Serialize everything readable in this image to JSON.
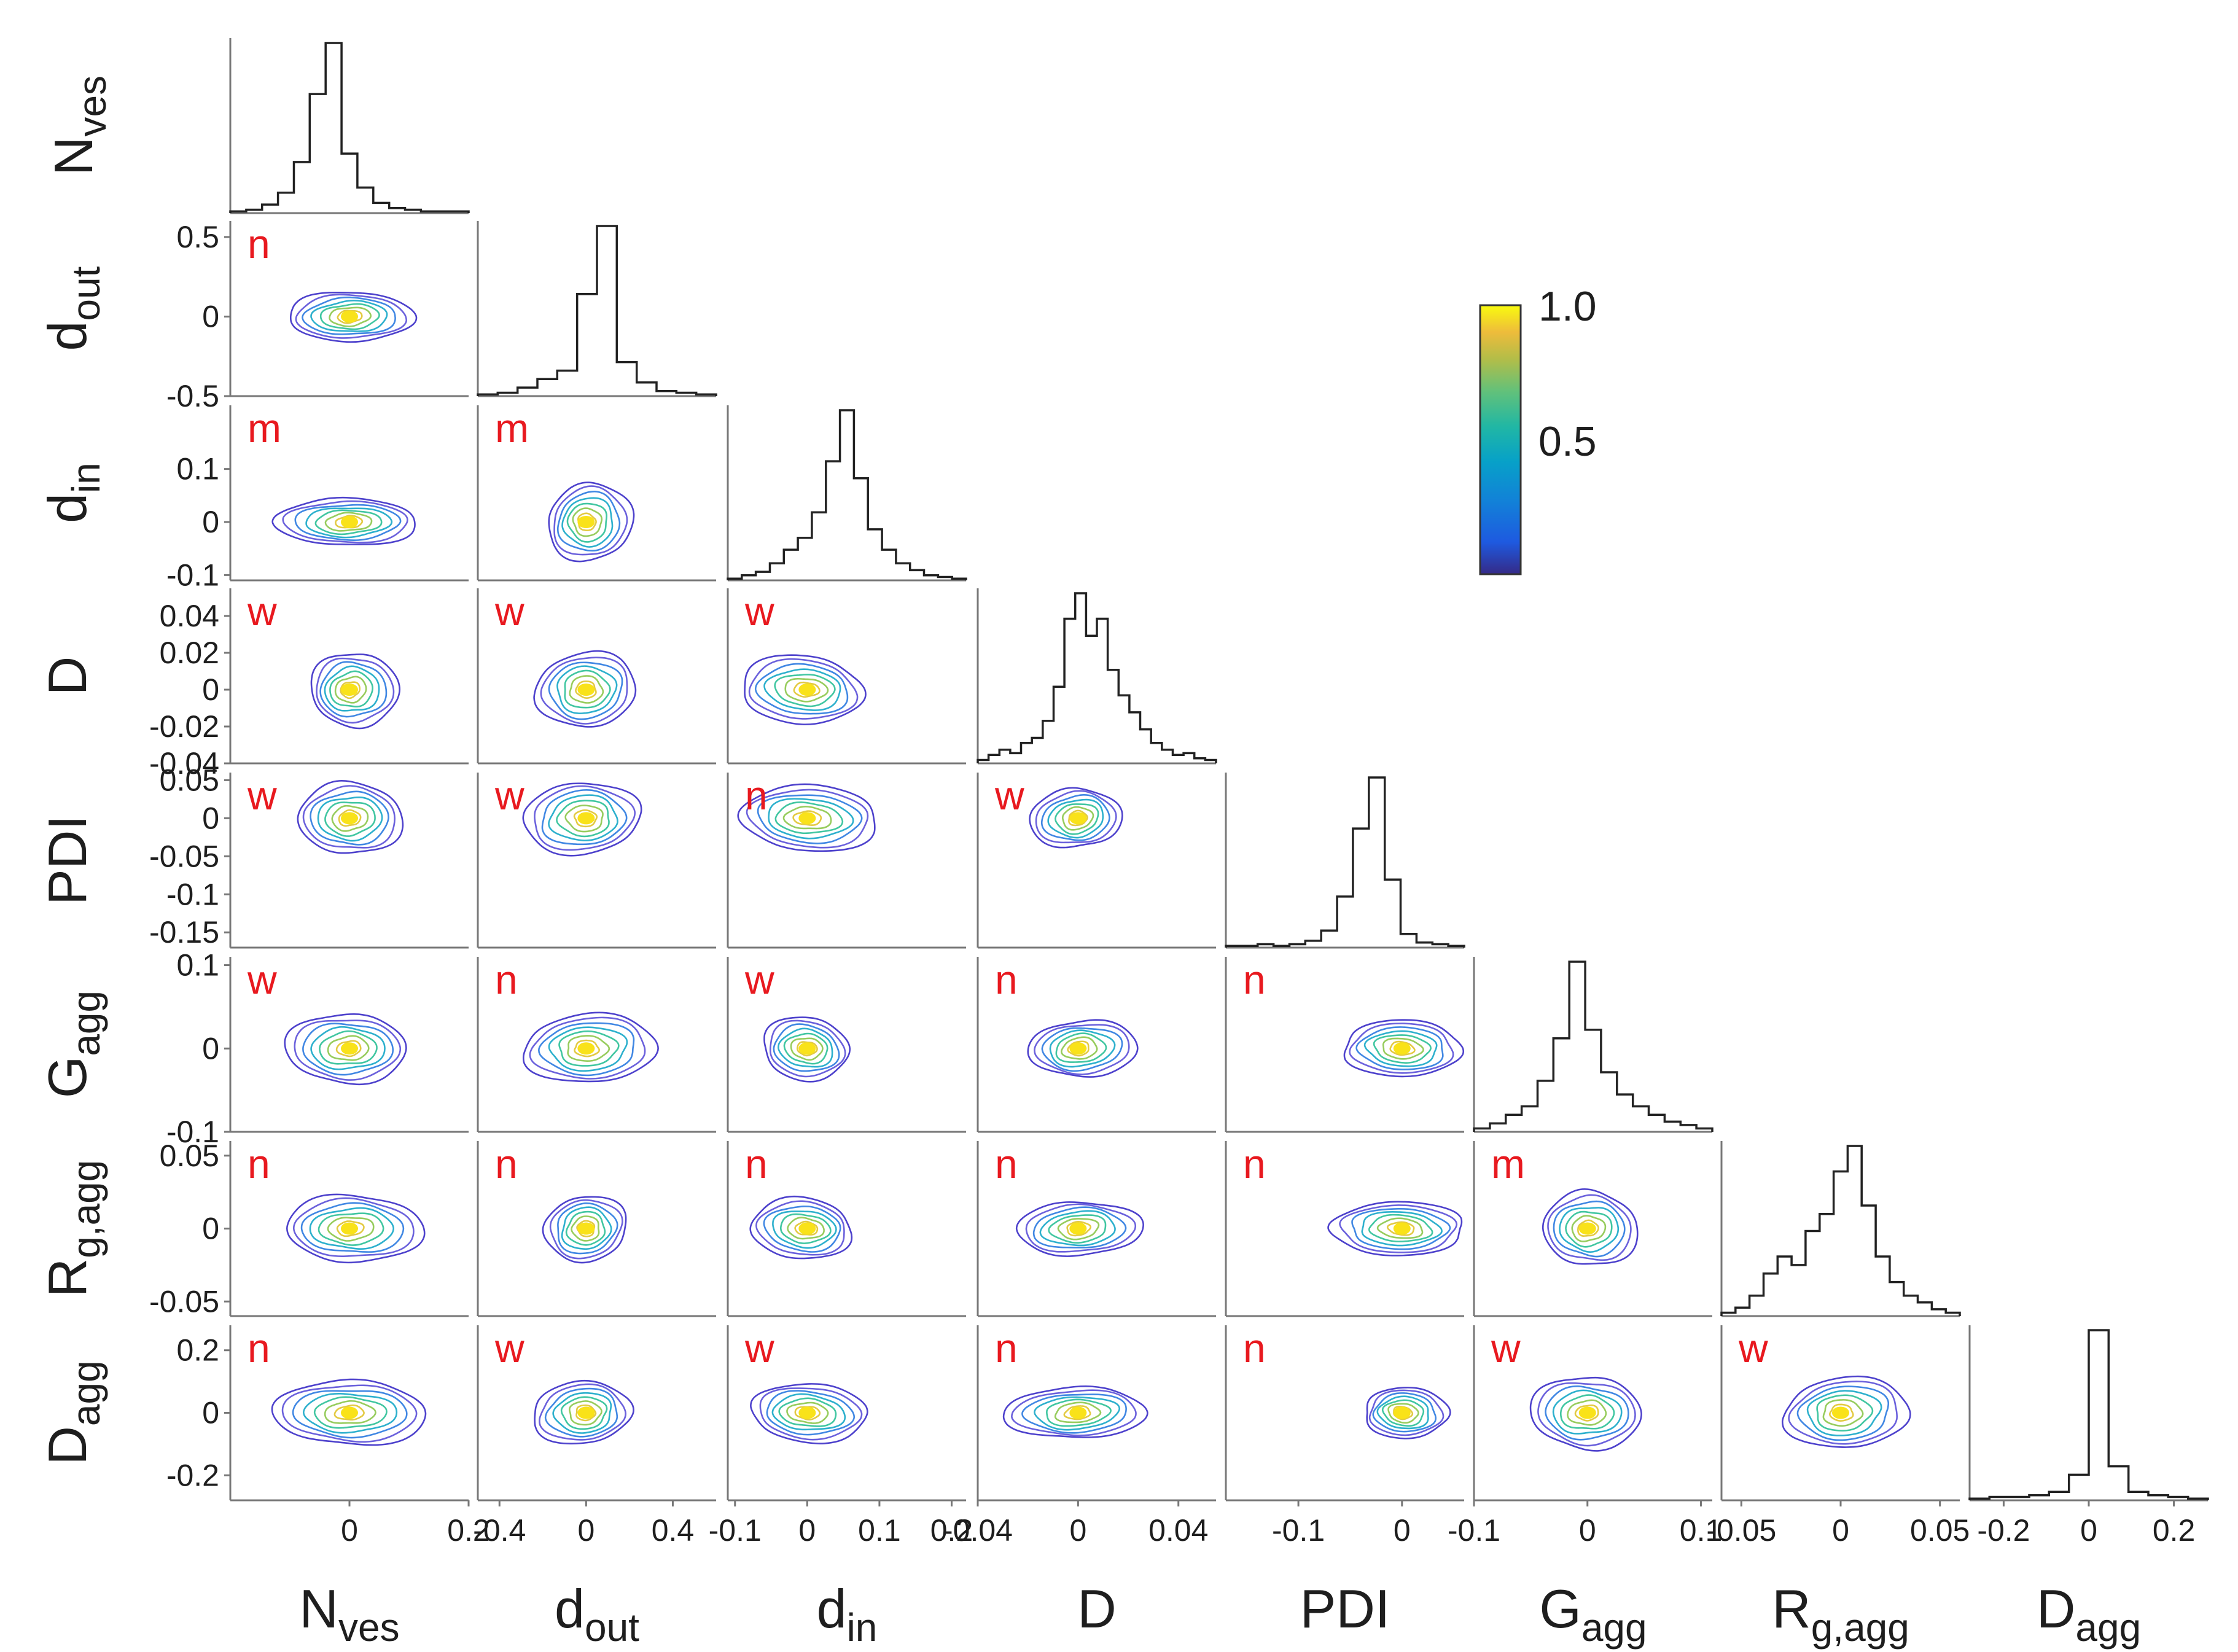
{
  "chart_data": {
    "type": "corner-plot",
    "description_type": "pairwise kernel-density contour matrix with marginal histograms",
    "variables": [
      {
        "id": "Nves",
        "base": "N",
        "sub": "ves"
      },
      {
        "id": "dout",
        "base": "d",
        "sub": "out"
      },
      {
        "id": "din",
        "base": "d",
        "sub": "in"
      },
      {
        "id": "D",
        "base": "D",
        "sub": ""
      },
      {
        "id": "PDI",
        "base": "PDI",
        "sub": ""
      },
      {
        "id": "Gagg",
        "base": "G",
        "sub": "agg"
      },
      {
        "id": "Rgagg",
        "base": "R",
        "sub": "g,agg"
      },
      {
        "id": "Dagg",
        "base": "D",
        "sub": "agg"
      }
    ],
    "ranges": [
      [
        -0.2,
        0.2
      ],
      [
        -0.5,
        0.6
      ],
      [
        -0.11,
        0.22
      ],
      [
        -0.04,
        0.055
      ],
      [
        -0.17,
        0.06
      ],
      [
        -0.1,
        0.11
      ],
      [
        -0.06,
        0.06
      ],
      [
        -0.28,
        0.28
      ]
    ],
    "x_ticks": [
      {
        "values": [
          0,
          0.2
        ],
        "labels": [
          "0",
          "0.2"
        ]
      },
      {
        "values": [
          -0.4,
          0,
          0.4
        ],
        "labels": [
          "-0.4",
          "0",
          "0.4"
        ]
      },
      {
        "values": [
          -0.1,
          0,
          0.1,
          0.2
        ],
        "labels": [
          "-0.1",
          "0",
          "0.1",
          "0.2"
        ]
      },
      {
        "values": [
          -0.04,
          0,
          0.04
        ],
        "labels": [
          "-0.04",
          "0",
          "0.04"
        ]
      },
      {
        "values": [
          -0.1,
          0
        ],
        "labels": [
          "-0.1",
          "0"
        ]
      },
      {
        "values": [
          -0.1,
          0,
          0.1
        ],
        "labels": [
          "-0.1",
          "0",
          "0.1"
        ]
      },
      {
        "values": [
          -0.05,
          0,
          0.05
        ],
        "labels": [
          "-0.05",
          "0",
          "0.05"
        ]
      },
      {
        "values": [
          -0.2,
          0,
          0.2
        ],
        "labels": [
          "-0.2",
          "0",
          "0.2"
        ]
      }
    ],
    "y_ticks": [
      null,
      {
        "values": [
          0.5,
          0,
          -0.5
        ],
        "labels": [
          "0.5",
          "0",
          "-0.5"
        ]
      },
      {
        "values": [
          0.1,
          0,
          -0.1
        ],
        "labels": [
          "0.1",
          "0",
          "-0.1"
        ]
      },
      {
        "values": [
          0.04,
          0.02,
          0,
          -0.02,
          -0.04
        ],
        "labels": [
          "0.04",
          "0.02",
          "0",
          "-0.02",
          "-0.04"
        ]
      },
      {
        "values": [
          0.05,
          0,
          -0.05,
          -0.1,
          -0.15
        ],
        "labels": [
          "0.05",
          "0",
          "-0.05",
          "-0.1",
          "-0.15"
        ]
      },
      {
        "values": [
          0.1,
          0,
          -0.1
        ],
        "labels": [
          "0.1",
          "0",
          "-0.1"
        ]
      },
      {
        "values": [
          0.05,
          0,
          -0.05
        ],
        "labels": [
          "0.05",
          "0",
          "-0.05"
        ]
      },
      {
        "values": [
          0.2,
          0,
          -0.2
        ],
        "labels": [
          "0.2",
          "0",
          "-0.2"
        ]
      }
    ],
    "correlation_letters": [
      [
        "n"
      ],
      [
        "m",
        "m"
      ],
      [
        "w",
        "w",
        "w"
      ],
      [
        "w",
        "w",
        "n",
        "w"
      ],
      [
        "w",
        "n",
        "w",
        "n",
        "n"
      ],
      [
        "n",
        "n",
        "n",
        "n",
        "n",
        "m"
      ],
      [
        "n",
        "w",
        "w",
        "n",
        "n",
        "w",
        "w"
      ]
    ],
    "histograms": [
      [
        0.01,
        0.02,
        0.05,
        0.12,
        0.3,
        0.7,
        1.0,
        0.35,
        0.15,
        0.06,
        0.03,
        0.02,
        0.01,
        0.01,
        0.01
      ],
      [
        0.01,
        0.02,
        0.05,
        0.1,
        0.15,
        0.6,
        1.0,
        0.2,
        0.08,
        0.03,
        0.02,
        0.01
      ],
      [
        0.01,
        0.03,
        0.05,
        0.1,
        0.18,
        0.25,
        0.4,
        0.7,
        1.0,
        0.6,
        0.3,
        0.18,
        0.1,
        0.06,
        0.03,
        0.02,
        0.01
      ],
      [
        0.02,
        0.05,
        0.08,
        0.06,
        0.12,
        0.15,
        0.25,
        0.45,
        0.85,
        1.0,
        0.75,
        0.85,
        0.55,
        0.4,
        0.3,
        0.2,
        0.12,
        0.08,
        0.05,
        0.06,
        0.03,
        0.02
      ],
      [
        0.01,
        0.01,
        0.02,
        0.01,
        0.02,
        0.04,
        0.1,
        0.3,
        0.7,
        1.0,
        0.4,
        0.08,
        0.03,
        0.02,
        0.01
      ],
      [
        0.02,
        0.05,
        0.1,
        0.15,
        0.3,
        0.55,
        1.0,
        0.6,
        0.35,
        0.22,
        0.15,
        0.1,
        0.06,
        0.04,
        0.02
      ],
      [
        0.02,
        0.05,
        0.12,
        0.25,
        0.35,
        0.3,
        0.5,
        0.6,
        0.85,
        1.0,
        0.65,
        0.35,
        0.2,
        0.12,
        0.08,
        0.04,
        0.02
      ],
      [
        0.01,
        0.02,
        0.02,
        0.03,
        0.05,
        0.15,
        1.0,
        0.2,
        0.05,
        0.03,
        0.02,
        0.01
      ]
    ],
    "colorbar": {
      "colormap": "parula",
      "min": 0,
      "max": 1.0,
      "tick_labels": [
        "1.0",
        "0.5"
      ],
      "tick_values": [
        1.0,
        0.5
      ]
    },
    "colors": {
      "letter": "#e8191f",
      "axis": "#777777",
      "text": "#1e1e1e",
      "histogram": "#222222",
      "contours": [
        "#3a2cc7",
        "#5b50d8",
        "#2b7ae0",
        "#16a7c8",
        "#2cc097",
        "#8cc74b",
        "#e0c42e",
        "#f9e219"
      ]
    }
  }
}
